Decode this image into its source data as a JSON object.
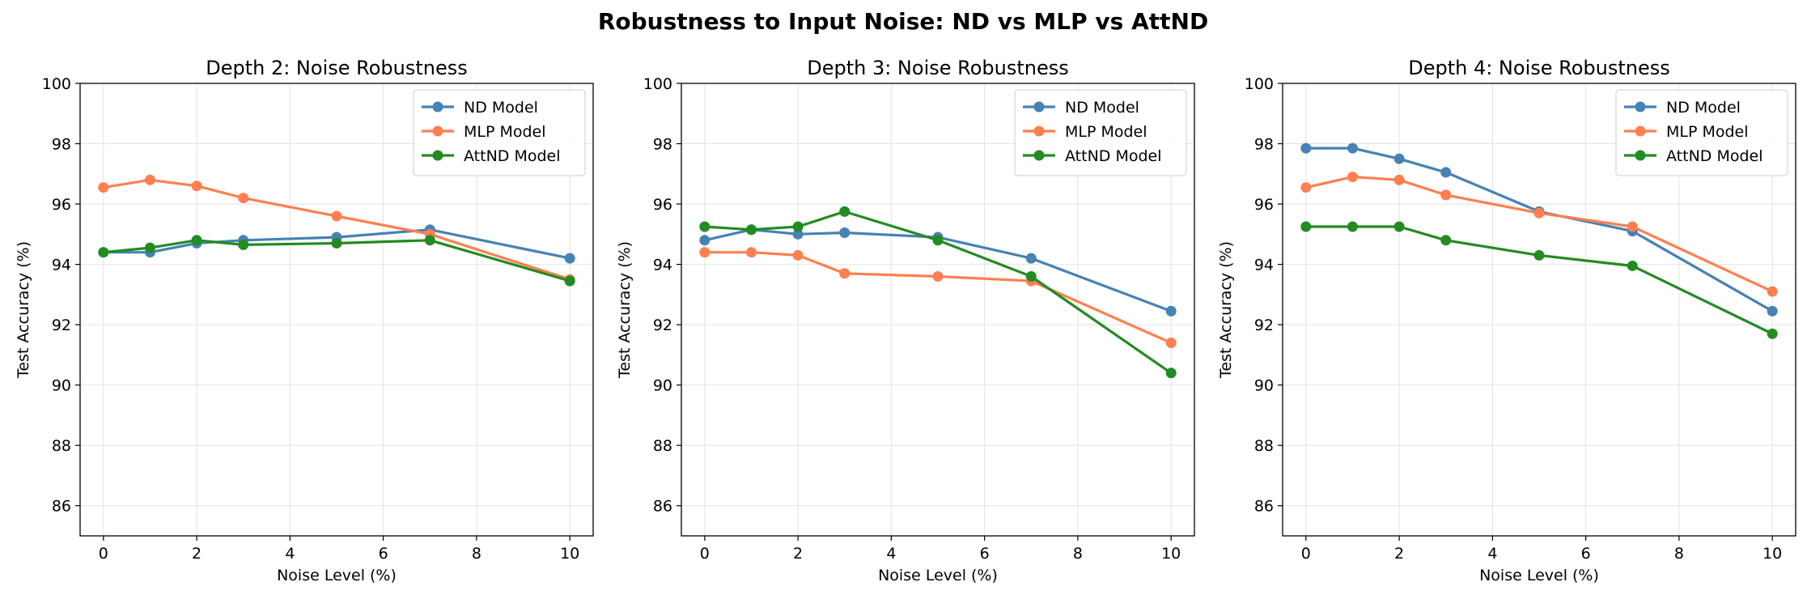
{
  "figure": {
    "title": "Robustness to Input Noise: ND vs MLP vs AttND",
    "colors": {
      "ND Model": "#4682b4",
      "MLP Model": "#ff7f50",
      "AttND Model": "#228b22"
    }
  },
  "chart_data": [
    {
      "type": "line",
      "title": "Depth 2: Noise Robustness",
      "xlabel": "Noise Level (%)",
      "ylabel": "Test Accuracy (%)",
      "xlim": [
        -0.5,
        10.5
      ],
      "ylim": [
        85,
        100
      ],
      "xticks": [
        0,
        2,
        4,
        6,
        8,
        10
      ],
      "yticks": [
        86,
        88,
        90,
        92,
        94,
        96,
        98,
        100
      ],
      "grid": true,
      "legend_position": "top-right",
      "x": [
        0,
        1,
        2,
        3,
        5,
        7,
        10
      ],
      "series": [
        {
          "name": "ND Model",
          "values": [
            94.4,
            94.4,
            94.7,
            94.8,
            94.9,
            95.15,
            94.2
          ]
        },
        {
          "name": "MLP Model",
          "values": [
            96.55,
            96.8,
            96.6,
            96.2,
            95.6,
            95.0,
            93.5
          ]
        },
        {
          "name": "AttND Model",
          "values": [
            94.4,
            94.55,
            94.8,
            94.65,
            94.7,
            94.8,
            93.45
          ]
        }
      ]
    },
    {
      "type": "line",
      "title": "Depth 3: Noise Robustness",
      "xlabel": "Noise Level (%)",
      "ylabel": "Test Accuracy (%)",
      "xlim": [
        -0.5,
        10.5
      ],
      "ylim": [
        85,
        100
      ],
      "xticks": [
        0,
        2,
        4,
        6,
        8,
        10
      ],
      "yticks": [
        86,
        88,
        90,
        92,
        94,
        96,
        98,
        100
      ],
      "grid": true,
      "legend_position": "top-right",
      "x": [
        0,
        1,
        2,
        3,
        5,
        7,
        10
      ],
      "series": [
        {
          "name": "ND Model",
          "values": [
            94.8,
            95.15,
            95.0,
            95.05,
            94.9,
            94.2,
            92.45
          ]
        },
        {
          "name": "MLP Model",
          "values": [
            94.4,
            94.4,
            94.3,
            93.7,
            93.6,
            93.45,
            91.4
          ]
        },
        {
          "name": "AttND Model",
          "values": [
            95.25,
            95.15,
            95.25,
            95.75,
            94.8,
            93.6,
            90.4
          ]
        }
      ]
    },
    {
      "type": "line",
      "title": "Depth 4: Noise Robustness",
      "xlabel": "Noise Level (%)",
      "ylabel": "Test Accuracy (%)",
      "xlim": [
        -0.5,
        10.5
      ],
      "ylim": [
        85,
        100
      ],
      "xticks": [
        0,
        2,
        4,
        6,
        8,
        10
      ],
      "yticks": [
        86,
        88,
        90,
        92,
        94,
        96,
        98,
        100
      ],
      "grid": true,
      "legend_position": "top-right",
      "x": [
        0,
        1,
        2,
        3,
        5,
        7,
        10
      ],
      "series": [
        {
          "name": "ND Model",
          "values": [
            97.85,
            97.85,
            97.5,
            97.05,
            95.75,
            95.1,
            92.45
          ]
        },
        {
          "name": "MLP Model",
          "values": [
            96.55,
            96.9,
            96.8,
            96.3,
            95.7,
            95.25,
            93.1
          ]
        },
        {
          "name": "AttND Model",
          "values": [
            95.25,
            95.25,
            95.25,
            94.8,
            94.3,
            93.95,
            91.7
          ]
        }
      ]
    }
  ]
}
